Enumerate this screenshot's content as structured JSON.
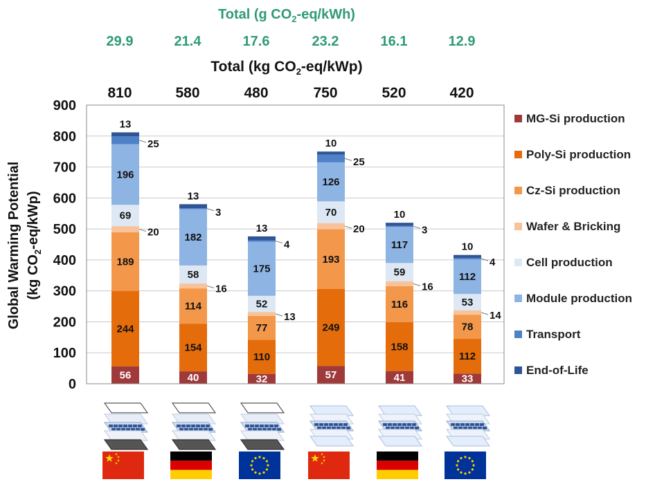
{
  "chart_data": {
    "type": "bar",
    "stacked": true,
    "title_top": "Total (g CO2-eq/kWh)",
    "title_second": "Total (kg CO2-eq/kWp)",
    "ylabel_line1": "Global Warming Potential",
    "ylabel_line2": "(kg CO2-eq/kWp)",
    "ylim": [
      0,
      900
    ],
    "yticks": [
      "0",
      "100",
      "200",
      "300",
      "400",
      "500",
      "600",
      "700",
      "800",
      "900"
    ],
    "grid": true,
    "legend_position": "right",
    "categories": [
      "China (glass-backsheet)",
      "Germany (glass-backsheet)",
      "EU (glass-backsheet)",
      "China (glass-glass)",
      "Germany (glass-glass)",
      "EU (glass-glass)"
    ],
    "totals_kwh": [
      "29.9",
      "21.4",
      "17.6",
      "23.2",
      "16.1",
      "12.9"
    ],
    "totals_kwp": [
      "810",
      "580",
      "480",
      "750",
      "520",
      "420"
    ],
    "series": [
      {
        "name": "MG-Si production",
        "color": "#a0393a",
        "values": [
          56,
          40,
          32,
          57,
          41,
          33
        ],
        "labels": [
          "56",
          "40",
          "32",
          "57",
          "41",
          "33"
        ]
      },
      {
        "name": "Poly-Si production",
        "color": "#e46c0a",
        "values": [
          244,
          154,
          110,
          249,
          158,
          112
        ],
        "labels": [
          "244",
          "154",
          "110",
          "249",
          "158",
          "112"
        ]
      },
      {
        "name": "Cz-Si production",
        "color": "#f3974a",
        "values": [
          189,
          114,
          77,
          193,
          116,
          78
        ],
        "labels": [
          "189",
          "114",
          "77",
          "193",
          "116",
          "78"
        ]
      },
      {
        "name": "Wafer & Bricking",
        "color": "#f8c39a",
        "values": [
          20,
          16,
          13,
          20,
          16,
          14
        ],
        "labels": [
          "20",
          "16",
          "13",
          "20",
          "16",
          "14"
        ]
      },
      {
        "name": "Cell production",
        "color": "#dde8f4",
        "values": [
          69,
          58,
          52,
          70,
          59,
          53
        ],
        "labels": [
          "69",
          "58",
          "52",
          "70",
          "59",
          "53"
        ]
      },
      {
        "name": "Module production",
        "color": "#8eb4e3",
        "values": [
          196,
          182,
          175,
          126,
          117,
          112
        ],
        "labels": [
          "196",
          "182",
          "175",
          "126",
          "117",
          "112"
        ]
      },
      {
        "name": "Transport",
        "color": "#4f81c8",
        "values": [
          25,
          3,
          4,
          25,
          3,
          4
        ],
        "labels": [
          "25",
          "3",
          "4",
          "25",
          "3",
          "4"
        ]
      },
      {
        "name": "End-of-Life",
        "color": "#2f5597",
        "values": [
          13,
          13,
          13,
          10,
          10,
          10
        ],
        "labels": [
          "13",
          "13",
          "13",
          "10",
          "10",
          "10"
        ]
      }
    ]
  },
  "icons": {
    "modules": [
      "glass-backsheet-module-icon",
      "glass-backsheet-module-icon",
      "glass-backsheet-module-icon",
      "glass-glass-module-icon",
      "glass-glass-module-icon",
      "glass-glass-module-icon"
    ],
    "flags": [
      "china-flag-icon",
      "germany-flag-icon",
      "eu-flag-icon",
      "china-flag-icon",
      "germany-flag-icon",
      "eu-flag-icon"
    ]
  }
}
